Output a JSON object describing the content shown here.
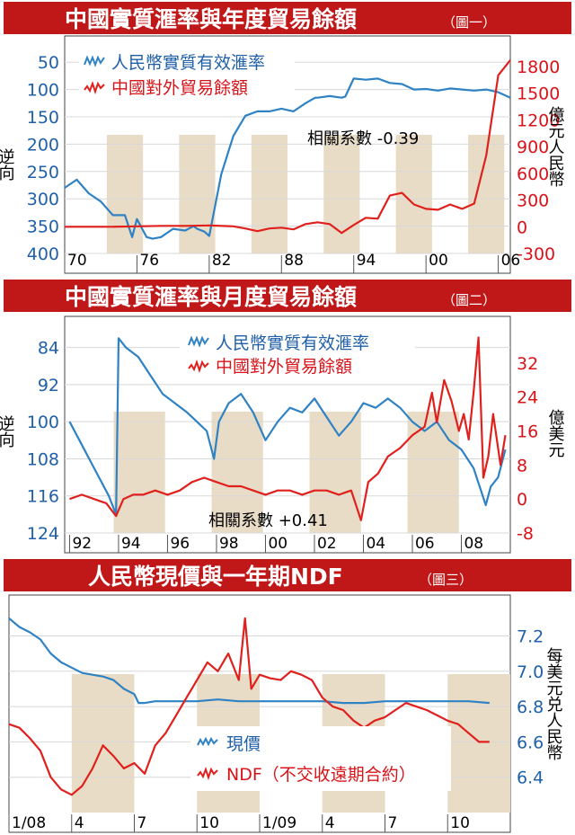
{
  "panels": [
    {
      "title": "中國實質滙率與年度貿易餘額",
      "fig_label": "（圖一）",
      "legend": [
        "人民幣實質有效滙率",
        "中國對外貿易餘額"
      ],
      "left_axis_label": "逆向",
      "right_axis_label": "億元人民幣",
      "annotation": "相關系數 -0.39"
    },
    {
      "title": "中國實質滙率與月度貿易餘額",
      "fig_label": "（圖二）",
      "legend": [
        "人民幣實質有效滙率",
        "中國對外貿易餘額"
      ],
      "left_axis_label": "逆向",
      "right_axis_label": "億美元",
      "annotation": "相關系數 +0.41"
    },
    {
      "title": "人民幣現價與一年期NDF",
      "fig_label": "（圖三）",
      "legend": [
        "現價",
        "NDF（不交收遠期合約）"
      ],
      "right_axis_label": "每美元兑人民幣"
    }
  ],
  "colors": {
    "title_band": "#c01818",
    "blue_series": "#2f82c4",
    "red_series": "#e0201c",
    "axis_blue": "#2060a8",
    "axis_red": "#d8141a",
    "shade": "#e9dcc6"
  },
  "chart_data": [
    {
      "type": "line",
      "title": "中國實質滙率與年度貿易餘額",
      "x_ticks": [
        "70",
        "76",
        "82",
        "88",
        "94",
        "00",
        "06"
      ],
      "x_range": [
        1970,
        2007
      ],
      "y_left": {
        "label": "逆向",
        "ticks": [
          "50",
          "100",
          "150",
          "200",
          "250",
          "300",
          "350",
          "400"
        ],
        "range": [
          25,
          400
        ],
        "inverted": true
      },
      "y_right": {
        "label": "億元人民幣",
        "ticks": [
          "1800",
          "1500",
          "1200",
          "900",
          "600",
          "300",
          "0",
          "-300"
        ],
        "range": [
          -300,
          2000
        ]
      },
      "shaded_periods": [
        [
          1973.5,
          1976.5
        ],
        [
          1979.5,
          1982.5
        ],
        [
          1985.5,
          1988.5
        ],
        [
          1991.5,
          1994.5
        ],
        [
          1997.5,
          2000.5
        ],
        [
          2003.5,
          2006.5
        ]
      ],
      "series": [
        {
          "name": "人民幣實質有效滙率",
          "axis": "left",
          "color": "#2f82c4",
          "x": [
            1970,
            1971,
            1972,
            1973,
            1974,
            1975,
            1975.6,
            1976,
            1976.8,
            1977.3,
            1978,
            1979,
            1980,
            1980.7,
            1981,
            1981.6,
            1982,
            1983,
            1984,
            1985,
            1986,
            1987,
            1988,
            1989,
            1990,
            1990.8,
            1991,
            1992,
            1993,
            1993.3,
            1994,
            1995,
            1996,
            1997,
            1998,
            1999,
            2000,
            2001,
            2002,
            2003,
            2004,
            2005,
            2006,
            2007
          ],
          "y": [
            280,
            265,
            290,
            305,
            330,
            330,
            370,
            337,
            370,
            373,
            370,
            355,
            358,
            350,
            355,
            360,
            368,
            255,
            185,
            148,
            140,
            140,
            135,
            140,
            125,
            115,
            115,
            112,
            115,
            113,
            80,
            82,
            80,
            88,
            90,
            100,
            99,
            102,
            98,
            100,
            102,
            100,
            105,
            115
          ]
        },
        {
          "name": "中國對外貿易餘額",
          "axis": "right",
          "color": "#e0201c",
          "x": [
            1970,
            1972,
            1974,
            1976,
            1978,
            1980,
            1982,
            1984,
            1985,
            1986,
            1987,
            1988,
            1989,
            1990,
            1991,
            1992,
            1993,
            1994,
            1995,
            1996,
            1997,
            1998,
            1999,
            2000,
            2001,
            2002,
            2003,
            2004,
            2005,
            2006,
            2007
          ],
          "y": [
            0,
            0,
            0,
            5,
            10,
            10,
            15,
            5,
            -20,
            -50,
            -20,
            -10,
            -30,
            30,
            50,
            30,
            -70,
            20,
            100,
            90,
            350,
            380,
            250,
            200,
            190,
            250,
            200,
            260,
            800,
            1700,
            1870
          ]
        }
      ]
    },
    {
      "type": "line",
      "title": "中國實質滙率與月度貿易餘額",
      "x_ticks": [
        "92",
        "94",
        "96",
        "98",
        "00",
        "02",
        "04",
        "06",
        "08"
      ],
      "x_range": [
        1991.8,
        2010
      ],
      "y_left": {
        "label": "逆向",
        "ticks": [
          "84",
          "92",
          "100",
          "108",
          "116",
          "124"
        ],
        "range": [
          80,
          124
        ],
        "inverted": true
      },
      "y_right": {
        "label": "億美元",
        "ticks": [
          "32",
          "24",
          "16",
          "8",
          "0",
          "-8"
        ],
        "range": [
          -8,
          40
        ]
      },
      "shaded_periods": [
        [
          1993.8,
          1995.9
        ],
        [
          1997.8,
          1999.9
        ],
        [
          2001.8,
          2003.9
        ],
        [
          2005.8,
          2007.9
        ]
      ],
      "series": [
        {
          "name": "人民幣實質有效滙率",
          "axis": "left",
          "color": "#2f82c4",
          "x": [
            1992,
            1992.4,
            1992.8,
            1993.2,
            1993.6,
            1993.9,
            1994.0,
            1994.3,
            1994.8,
            1995.3,
            1995.8,
            1996.3,
            1996.8,
            1997.2,
            1997.6,
            1997.9,
            1998.1,
            1998.5,
            1999,
            1999.5,
            2000,
            2000.5,
            2001,
            2001.5,
            2002,
            2002.5,
            2003,
            2003.5,
            2004,
            2004.5,
            2005,
            2005.5,
            2006,
            2006.5,
            2007,
            2007.5,
            2008,
            2008.5,
            2009,
            2009.2,
            2009.5,
            2009.8
          ],
          "y": [
            100,
            104,
            108,
            112,
            116,
            120,
            82,
            84,
            86,
            90,
            94,
            96,
            98,
            100,
            102,
            108,
            100,
            96,
            94,
            98,
            104,
            100,
            97,
            98,
            95,
            99,
            103,
            100,
            96,
            97,
            95,
            97,
            100,
            102,
            100,
            104,
            106,
            110,
            118,
            114,
            112,
            106
          ]
        },
        {
          "name": "中國對外貿易餘額",
          "axis": "right",
          "color": "#e0201c",
          "x": [
            1992,
            1992.5,
            1993,
            1993.5,
            1993.9,
            1994.2,
            1994.6,
            1995,
            1995.5,
            1996,
            1996.5,
            1997,
            1997.5,
            1998,
            1998.5,
            1999,
            1999.5,
            2000,
            2000.5,
            2001,
            2001.5,
            2002,
            2002.5,
            2003,
            2003.5,
            2003.9,
            2004.2,
            2004.6,
            2005,
            2005.5,
            2006,
            2006.5,
            2006.8,
            2007,
            2007.3,
            2007.6,
            2007.9,
            2008.1,
            2008.3,
            2008.5,
            2008.7,
            2008.9,
            2009.1,
            2009.3,
            2009.6,
            2009.8
          ],
          "y": [
            0,
            1,
            0,
            -1,
            -4,
            0,
            1,
            1,
            2,
            1,
            2,
            4,
            5,
            4,
            3,
            3,
            2,
            1,
            2,
            2,
            1,
            2,
            2,
            1,
            2,
            -5,
            4,
            6,
            10,
            12,
            15,
            17,
            25,
            18,
            28,
            23,
            16,
            20,
            14,
            25,
            38,
            5,
            10,
            20,
            8,
            15
          ]
        }
      ]
    },
    {
      "type": "line",
      "title": "人民幣現價與一年期NDF",
      "x_ticks": [
        "1/08",
        "4",
        "7",
        "10",
        "1/09",
        "4",
        "7",
        "10"
      ],
      "x_range": [
        0,
        24
      ],
      "y_right": {
        "label": "每美元兑人民幣",
        "ticks": [
          "7.2",
          "7.0",
          "6.8",
          "6.6",
          "6.4"
        ],
        "range": [
          6.2,
          7.36
        ]
      },
      "shaded_periods": [
        [
          3,
          6
        ],
        [
          9,
          12
        ],
        [
          15,
          18
        ],
        [
          21,
          24
        ]
      ],
      "series": [
        {
          "name": "現價",
          "color": "#2f82c4",
          "x": [
            0,
            0.5,
            1,
            1.5,
            2,
            2.5,
            3,
            3.5,
            4,
            4.5,
            5,
            5.5,
            6,
            6.2,
            6.5,
            7,
            8,
            9,
            10,
            11,
            12,
            13,
            14,
            15,
            16,
            17,
            18,
            19,
            20,
            21,
            22,
            23
          ],
          "y": [
            7.3,
            7.25,
            7.22,
            7.18,
            7.1,
            7.05,
            7.02,
            6.99,
            6.98,
            6.97,
            6.95,
            6.9,
            6.87,
            6.82,
            6.82,
            6.83,
            6.83,
            6.83,
            6.84,
            6.83,
            6.83,
            6.83,
            6.83,
            6.83,
            6.82,
            6.82,
            6.83,
            6.83,
            6.83,
            6.83,
            6.83,
            6.82
          ]
        },
        {
          "name": "NDF（不交收遠期合約）",
          "color": "#e0201c",
          "x": [
            0,
            0.5,
            1,
            1.5,
            2,
            2.5,
            3,
            3.5,
            4,
            4.5,
            5,
            5.5,
            6,
            6.5,
            7,
            7.5,
            8,
            8.5,
            9,
            9.5,
            10,
            10.5,
            11,
            11.3,
            11.6,
            12,
            12.5,
            13,
            13.5,
            14,
            14.5,
            15,
            15.5,
            16,
            16.5,
            17,
            17.5,
            18,
            18.5,
            19,
            19.5,
            20,
            20.5,
            21,
            21.5,
            22,
            22.5,
            23
          ],
          "y": [
            6.7,
            6.68,
            6.62,
            6.55,
            6.4,
            6.33,
            6.3,
            6.35,
            6.45,
            6.58,
            6.52,
            6.45,
            6.48,
            6.42,
            6.58,
            6.65,
            6.75,
            6.85,
            6.95,
            7.05,
            7.0,
            7.1,
            6.95,
            7.3,
            6.9,
            6.98,
            6.96,
            6.95,
            7.0,
            6.98,
            6.95,
            6.85,
            6.8,
            6.78,
            6.72,
            6.68,
            6.72,
            6.74,
            6.78,
            6.82,
            6.8,
            6.78,
            6.75,
            6.72,
            6.7,
            6.65,
            6.6,
            6.6
          ]
        }
      ]
    }
  ]
}
